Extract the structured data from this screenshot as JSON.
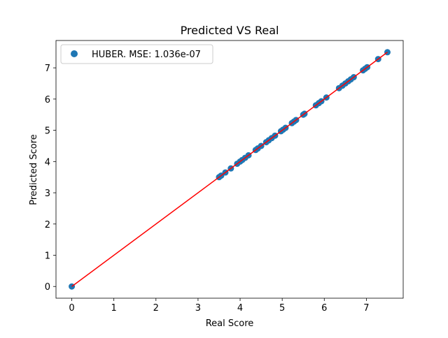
{
  "chart_data": {
    "type": "scatter",
    "title": "Predicted VS Real",
    "xlabel": "Real Score",
    "ylabel": "Predicted Score",
    "xlim": [
      -0.375,
      7.875
    ],
    "ylim": [
      -0.375,
      7.875
    ],
    "xticks": [
      0,
      1,
      2,
      3,
      4,
      5,
      6,
      7
    ],
    "yticks": [
      0,
      1,
      2,
      3,
      4,
      5,
      6,
      7
    ],
    "grid": false,
    "legend": {
      "placement": "top-left",
      "label": "HUBER. MSE: 1.036e-07"
    },
    "series": [
      {
        "name": "HUBER. MSE: 1.036e-07",
        "color": "#1f77b4",
        "marker": "circle",
        "points": [
          [
            0.0,
            0.0
          ],
          [
            3.5,
            3.5
          ],
          [
            3.55,
            3.55
          ],
          [
            3.65,
            3.65
          ],
          [
            3.78,
            3.78
          ],
          [
            3.93,
            3.93
          ],
          [
            4.0,
            4.0
          ],
          [
            4.05,
            4.05
          ],
          [
            4.12,
            4.12
          ],
          [
            4.2,
            4.2
          ],
          [
            4.37,
            4.37
          ],
          [
            4.42,
            4.42
          ],
          [
            4.5,
            4.5
          ],
          [
            4.62,
            4.62
          ],
          [
            4.68,
            4.68
          ],
          [
            4.75,
            4.75
          ],
          [
            4.83,
            4.83
          ],
          [
            4.97,
            4.97
          ],
          [
            5.02,
            5.02
          ],
          [
            5.08,
            5.08
          ],
          [
            5.23,
            5.23
          ],
          [
            5.28,
            5.28
          ],
          [
            5.33,
            5.33
          ],
          [
            5.5,
            5.5
          ],
          [
            5.53,
            5.53
          ],
          [
            5.8,
            5.8
          ],
          [
            5.87,
            5.87
          ],
          [
            5.93,
            5.93
          ],
          [
            6.05,
            6.05
          ],
          [
            6.35,
            6.35
          ],
          [
            6.43,
            6.43
          ],
          [
            6.5,
            6.5
          ],
          [
            6.57,
            6.57
          ],
          [
            6.63,
            6.63
          ],
          [
            6.7,
            6.7
          ],
          [
            6.92,
            6.92
          ],
          [
            6.97,
            6.97
          ],
          [
            7.02,
            7.02
          ],
          [
            7.28,
            7.28
          ],
          [
            7.5,
            7.5
          ]
        ]
      }
    ],
    "reference_line": {
      "color": "#ff0000",
      "x": [
        0.0,
        7.5
      ],
      "y": [
        0.0,
        7.5
      ]
    }
  }
}
